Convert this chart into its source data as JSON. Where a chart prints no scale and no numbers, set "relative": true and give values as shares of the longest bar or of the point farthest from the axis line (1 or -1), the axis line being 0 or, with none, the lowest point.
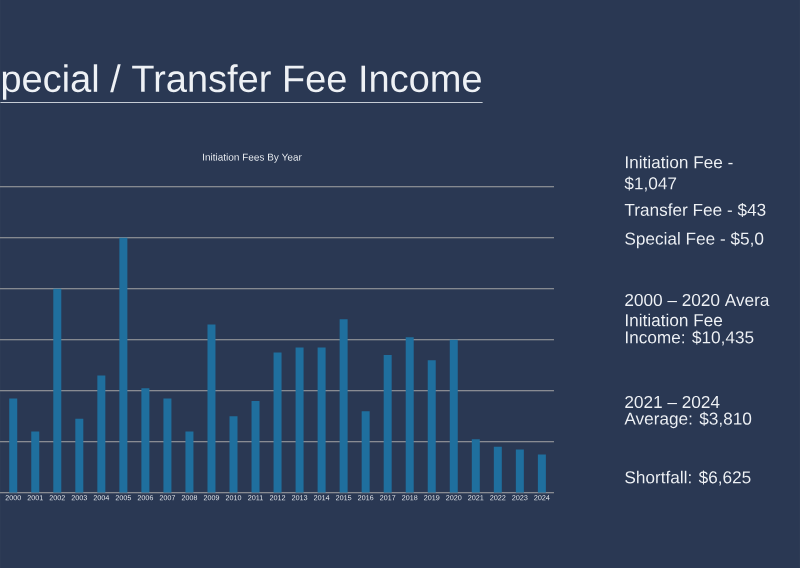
{
  "chart_data": {
    "type": "bar",
    "title": "pecial / Transfer Fee Income",
    "subtitle": "Initiation Fees By Year",
    "categories": [
      "2000",
      "2001",
      "2002",
      "2003",
      "2004",
      "2005",
      "2006",
      "2007",
      "2008",
      "2009",
      "2010",
      "2011",
      "2012",
      "2013",
      "2014",
      "2015",
      "2016",
      "2017",
      "2018",
      "2019",
      "2020",
      "2021",
      "2022",
      "2023",
      "2024"
    ],
    "values": [
      0.37,
      0.24,
      0.8,
      0.29,
      0.46,
      1,
      0.41,
      0.37,
      0.24,
      0.66,
      0.3,
      0.36,
      0.55,
      0.57,
      0.57,
      0.68,
      0.32,
      0.54,
      0.61,
      0.52,
      0.6,
      0.21,
      0.18,
      0.17,
      0.15
    ],
    "color": "#1f6f9e",
    "relative": true,
    "grid": "y",
    "annotations": [
      "Initiation Fee -",
      "$1,047",
      "Transfer Fee - $43",
      "Special Fee - $5,0",
      "2000 – 2020 Avera",
      "Initiation Fee",
      "Income: $10,435",
      "2021 – 2024",
      "Average: $3,810",
      "Shortfall: $6,625"
    ]
  }
}
